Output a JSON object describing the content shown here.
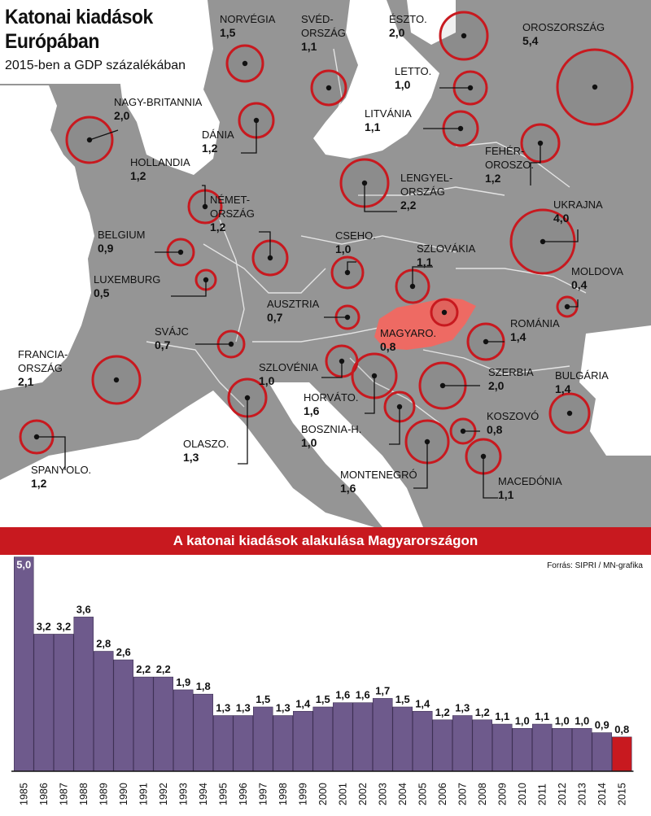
{
  "title_line1": "Katonai kiadások",
  "title_line2": "Európában",
  "subtitle": "2015-ben a GDP százalékában",
  "colors": {
    "land": "#959595",
    "sea": "#ffffff",
    "circle": "#c8191f",
    "hungary": "#ee6a63",
    "bar": "#6e5a8c",
    "bar_highlight": "#c8191f",
    "banner": "#c8191f"
  },
  "map_countries": [
    {
      "name_lines": [
        "NORVÉGIA"
      ],
      "value": "1,5",
      "gdp_pct": 1.5
    },
    {
      "name_lines": [
        "SVÉD-",
        "ORSZÁG"
      ],
      "value": "1,1",
      "gdp_pct": 1.1
    },
    {
      "name_lines": [
        "ÉSZTO."
      ],
      "value": "2,0",
      "gdp_pct": 2.0
    },
    {
      "name_lines": [
        "OROSZORSZÁG"
      ],
      "value": "5,4",
      "gdp_pct": 5.4
    },
    {
      "name_lines": [
        "LETTO."
      ],
      "value": "1,0",
      "gdp_pct": 1.0
    },
    {
      "name_lines": [
        "NAGY-BRITANNIA"
      ],
      "value": "2,0",
      "gdp_pct": 2.0
    },
    {
      "name_lines": [
        "LITVÁNIA"
      ],
      "value": "1,1",
      "gdp_pct": 1.1
    },
    {
      "name_lines": [
        "DÁNIA"
      ],
      "value": "1,2",
      "gdp_pct": 1.2
    },
    {
      "name_lines": [
        "FEHÉR-",
        "OROSZO."
      ],
      "value": "1,2",
      "gdp_pct": 1.2
    },
    {
      "name_lines": [
        "HOLLANDIA"
      ],
      "value": "1,2",
      "gdp_pct": 1.2
    },
    {
      "name_lines": [
        "LENGYEL-",
        "ORSZÁG"
      ],
      "value": "2,2",
      "gdp_pct": 2.2
    },
    {
      "name_lines": [
        "NÉMET-",
        "ORSZÁG"
      ],
      "value": "1,2",
      "gdp_pct": 1.2
    },
    {
      "name_lines": [
        "UKRAJNA"
      ],
      "value": "4,0",
      "gdp_pct": 4.0
    },
    {
      "name_lines": [
        "BELGIUM"
      ],
      "value": "0,9",
      "gdp_pct": 0.9
    },
    {
      "name_lines": [
        "CSEHO."
      ],
      "value": "1,0",
      "gdp_pct": 1.0
    },
    {
      "name_lines": [
        "SZLOVÁKIA"
      ],
      "value": "1,1",
      "gdp_pct": 1.1
    },
    {
      "name_lines": [
        "LUXEMBURG"
      ],
      "value": "0,5",
      "gdp_pct": 0.5
    },
    {
      "name_lines": [
        "MOLDOVA"
      ],
      "value": "0,4",
      "gdp_pct": 0.4
    },
    {
      "name_lines": [
        "AUSZTRIA"
      ],
      "value": "0,7",
      "gdp_pct": 0.7
    },
    {
      "name_lines": [
        "MAGYARO."
      ],
      "value": "0,8",
      "gdp_pct": 0.8
    },
    {
      "name_lines": [
        "ROMÁNIA"
      ],
      "value": "1,4",
      "gdp_pct": 1.4
    },
    {
      "name_lines": [
        "SVÁJC"
      ],
      "value": "0,7",
      "gdp_pct": 0.7
    },
    {
      "name_lines": [
        "FRANCIA-",
        "ORSZÁG"
      ],
      "value": "2,1",
      "gdp_pct": 2.1
    },
    {
      "name_lines": [
        "SZLOVÉNIA"
      ],
      "value": "1,0",
      "gdp_pct": 1.0
    },
    {
      "name_lines": [
        "SZERBIA"
      ],
      "value": "2,0",
      "gdp_pct": 2.0
    },
    {
      "name_lines": [
        "BULGÁRIA"
      ],
      "value": "1,4",
      "gdp_pct": 1.4
    },
    {
      "name_lines": [
        "HORVÁTO."
      ],
      "value": "1,6",
      "gdp_pct": 1.6
    },
    {
      "name_lines": [
        "KOSZOVÓ"
      ],
      "value": "0,8",
      "gdp_pct": 0.8
    },
    {
      "name_lines": [
        "BOSZNIA-H."
      ],
      "value": "1,0",
      "gdp_pct": 1.0
    },
    {
      "name_lines": [
        "OLASZO."
      ],
      "value": "1,3",
      "gdp_pct": 1.3
    },
    {
      "name_lines": [
        "SPANYOLO."
      ],
      "value": "1,2",
      "gdp_pct": 1.2
    },
    {
      "name_lines": [
        "MONTENEGRÓ"
      ],
      "value": "1,6",
      "gdp_pct": 1.6
    },
    {
      "name_lines": [
        "MACEDÓNIA"
      ],
      "value": "1,1",
      "gdp_pct": 1.1
    }
  ],
  "bar_section_title": "A katonai kiadások alakulása Magyarországon",
  "source": "Forrás: SIPRI / MN-grafika",
  "chart_data": {
    "type": "bar",
    "categories": [
      "1985",
      "1986",
      "1987",
      "1988",
      "1989",
      "1990",
      "1991",
      "1992",
      "1993",
      "1994",
      "1995",
      "1996",
      "1997",
      "1998",
      "1999",
      "2000",
      "2001",
      "2002",
      "2003",
      "2004",
      "2005",
      "2006",
      "2007",
      "2008",
      "2009",
      "2010",
      "2011",
      "2012",
      "2013",
      "2014",
      "2015"
    ],
    "values": [
      5.0,
      3.2,
      3.2,
      3.6,
      2.8,
      2.6,
      2.2,
      2.2,
      1.9,
      1.8,
      1.3,
      1.3,
      1.5,
      1.3,
      1.4,
      1.5,
      1.6,
      1.6,
      1.7,
      1.5,
      1.4,
      1.2,
      1.3,
      1.2,
      1.1,
      1.0,
      1.1,
      1.0,
      1.0,
      0.9,
      0.8
    ],
    "labels": [
      "5,0",
      "3,2",
      "3,2",
      "3,6",
      "2,8",
      "2,6",
      "2,2",
      "2,2",
      "1,9",
      "1,8",
      "1,3",
      "1,3",
      "1,5",
      "1,3",
      "1,4",
      "1,5",
      "1,6",
      "1,6",
      "1,7",
      "1,5",
      "1,4",
      "1,2",
      "1,3",
      "1,2",
      "1,1",
      "1,0",
      "1,1",
      "1,0",
      "1,0",
      "0,9",
      "0,8"
    ],
    "highlight": "2015",
    "title": "A katonai kiadások alakulása Magyarországon",
    "xlabel": "",
    "ylabel": "",
    "ylim": [
      0,
      5.0
    ],
    "grid": false
  }
}
